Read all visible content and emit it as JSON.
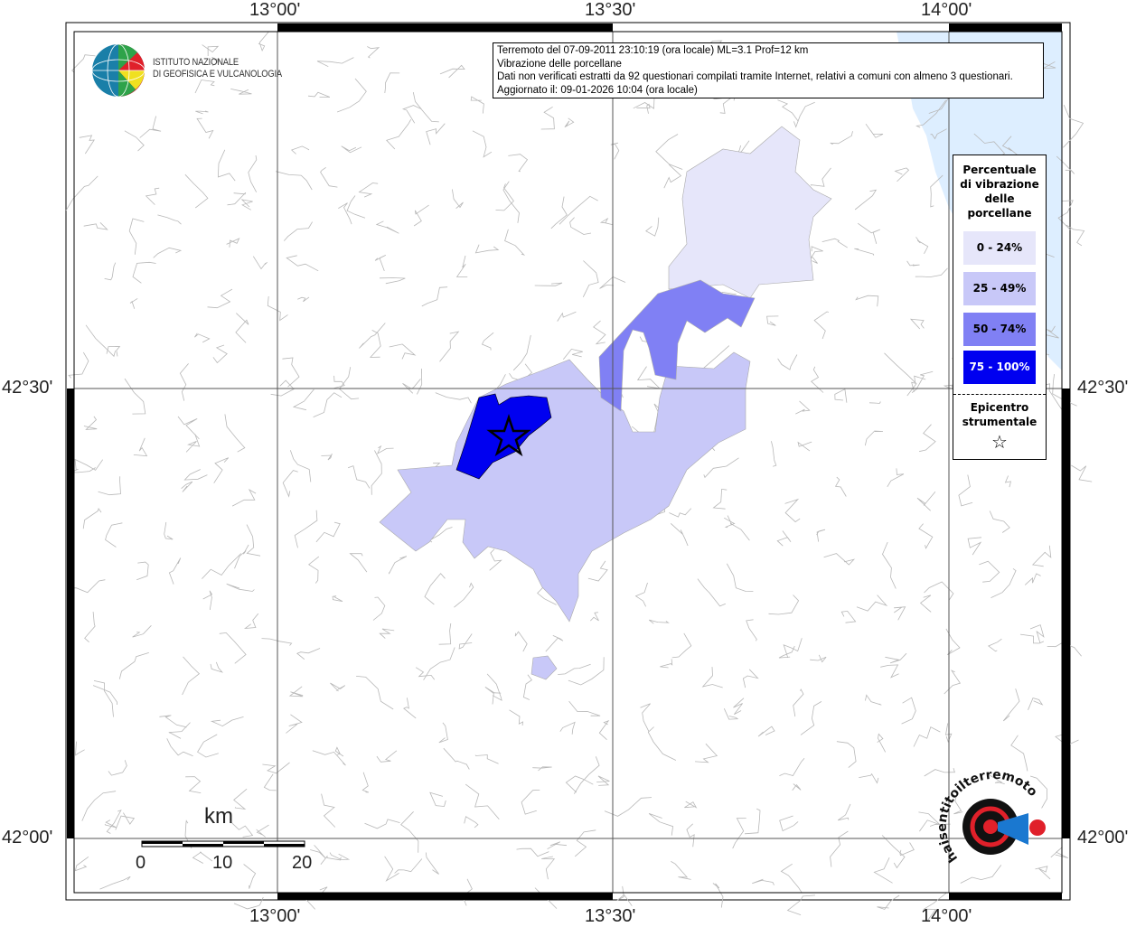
{
  "info_box": {
    "line1": "Terremoto del 07-09-2011 23:10:19 (ora locale) ML=3.1 Prof=12 km",
    "line2": "Vibrazione delle porcellane",
    "line3": "Dati non verificati estratti da 92 questionari compilati tramite Internet, relativi a comuni con almeno 3 questionari.",
    "line4": "Aggiornato il: 09-01-2026 10:04 (ora locale)"
  },
  "logo_ingv": {
    "text_line1": "ISTITUTO NAZIONALE",
    "text_line2": "DI GEOFISICA E VULCANOLOGIA"
  },
  "logo_hsit": {
    "text": "www.haisentitoilterremoto.it"
  },
  "axes": {
    "longitude_labels": [
      "13°00'",
      "13°30'",
      "14°00'"
    ],
    "latitude_labels": [
      "42°30'",
      "42°00'"
    ]
  },
  "legend": {
    "title": "Percentuale di vibrazione delle porcellane",
    "classes": [
      {
        "label": "0 - 24%",
        "color": "#e6e6fa",
        "text_color": "#000000"
      },
      {
        "label": "25 - 49%",
        "color": "#c8c8f8",
        "text_color": "#000000"
      },
      {
        "label": "50 - 74%",
        "color": "#8080f4",
        "text_color": "#000000"
      },
      {
        "label": "75 - 100%",
        "color": "#0000f0",
        "text_color": "#ffffff"
      }
    ],
    "epicenter_label": "Epicentro strumentale",
    "epicenter_icon": "star-outline"
  },
  "scale_bar": {
    "unit": "km",
    "ticks": [
      "0",
      "10",
      "20"
    ]
  },
  "colors": {
    "sea": "#ddeeff",
    "boundaries": "#b4b4b4",
    "grid": "#555555"
  }
}
